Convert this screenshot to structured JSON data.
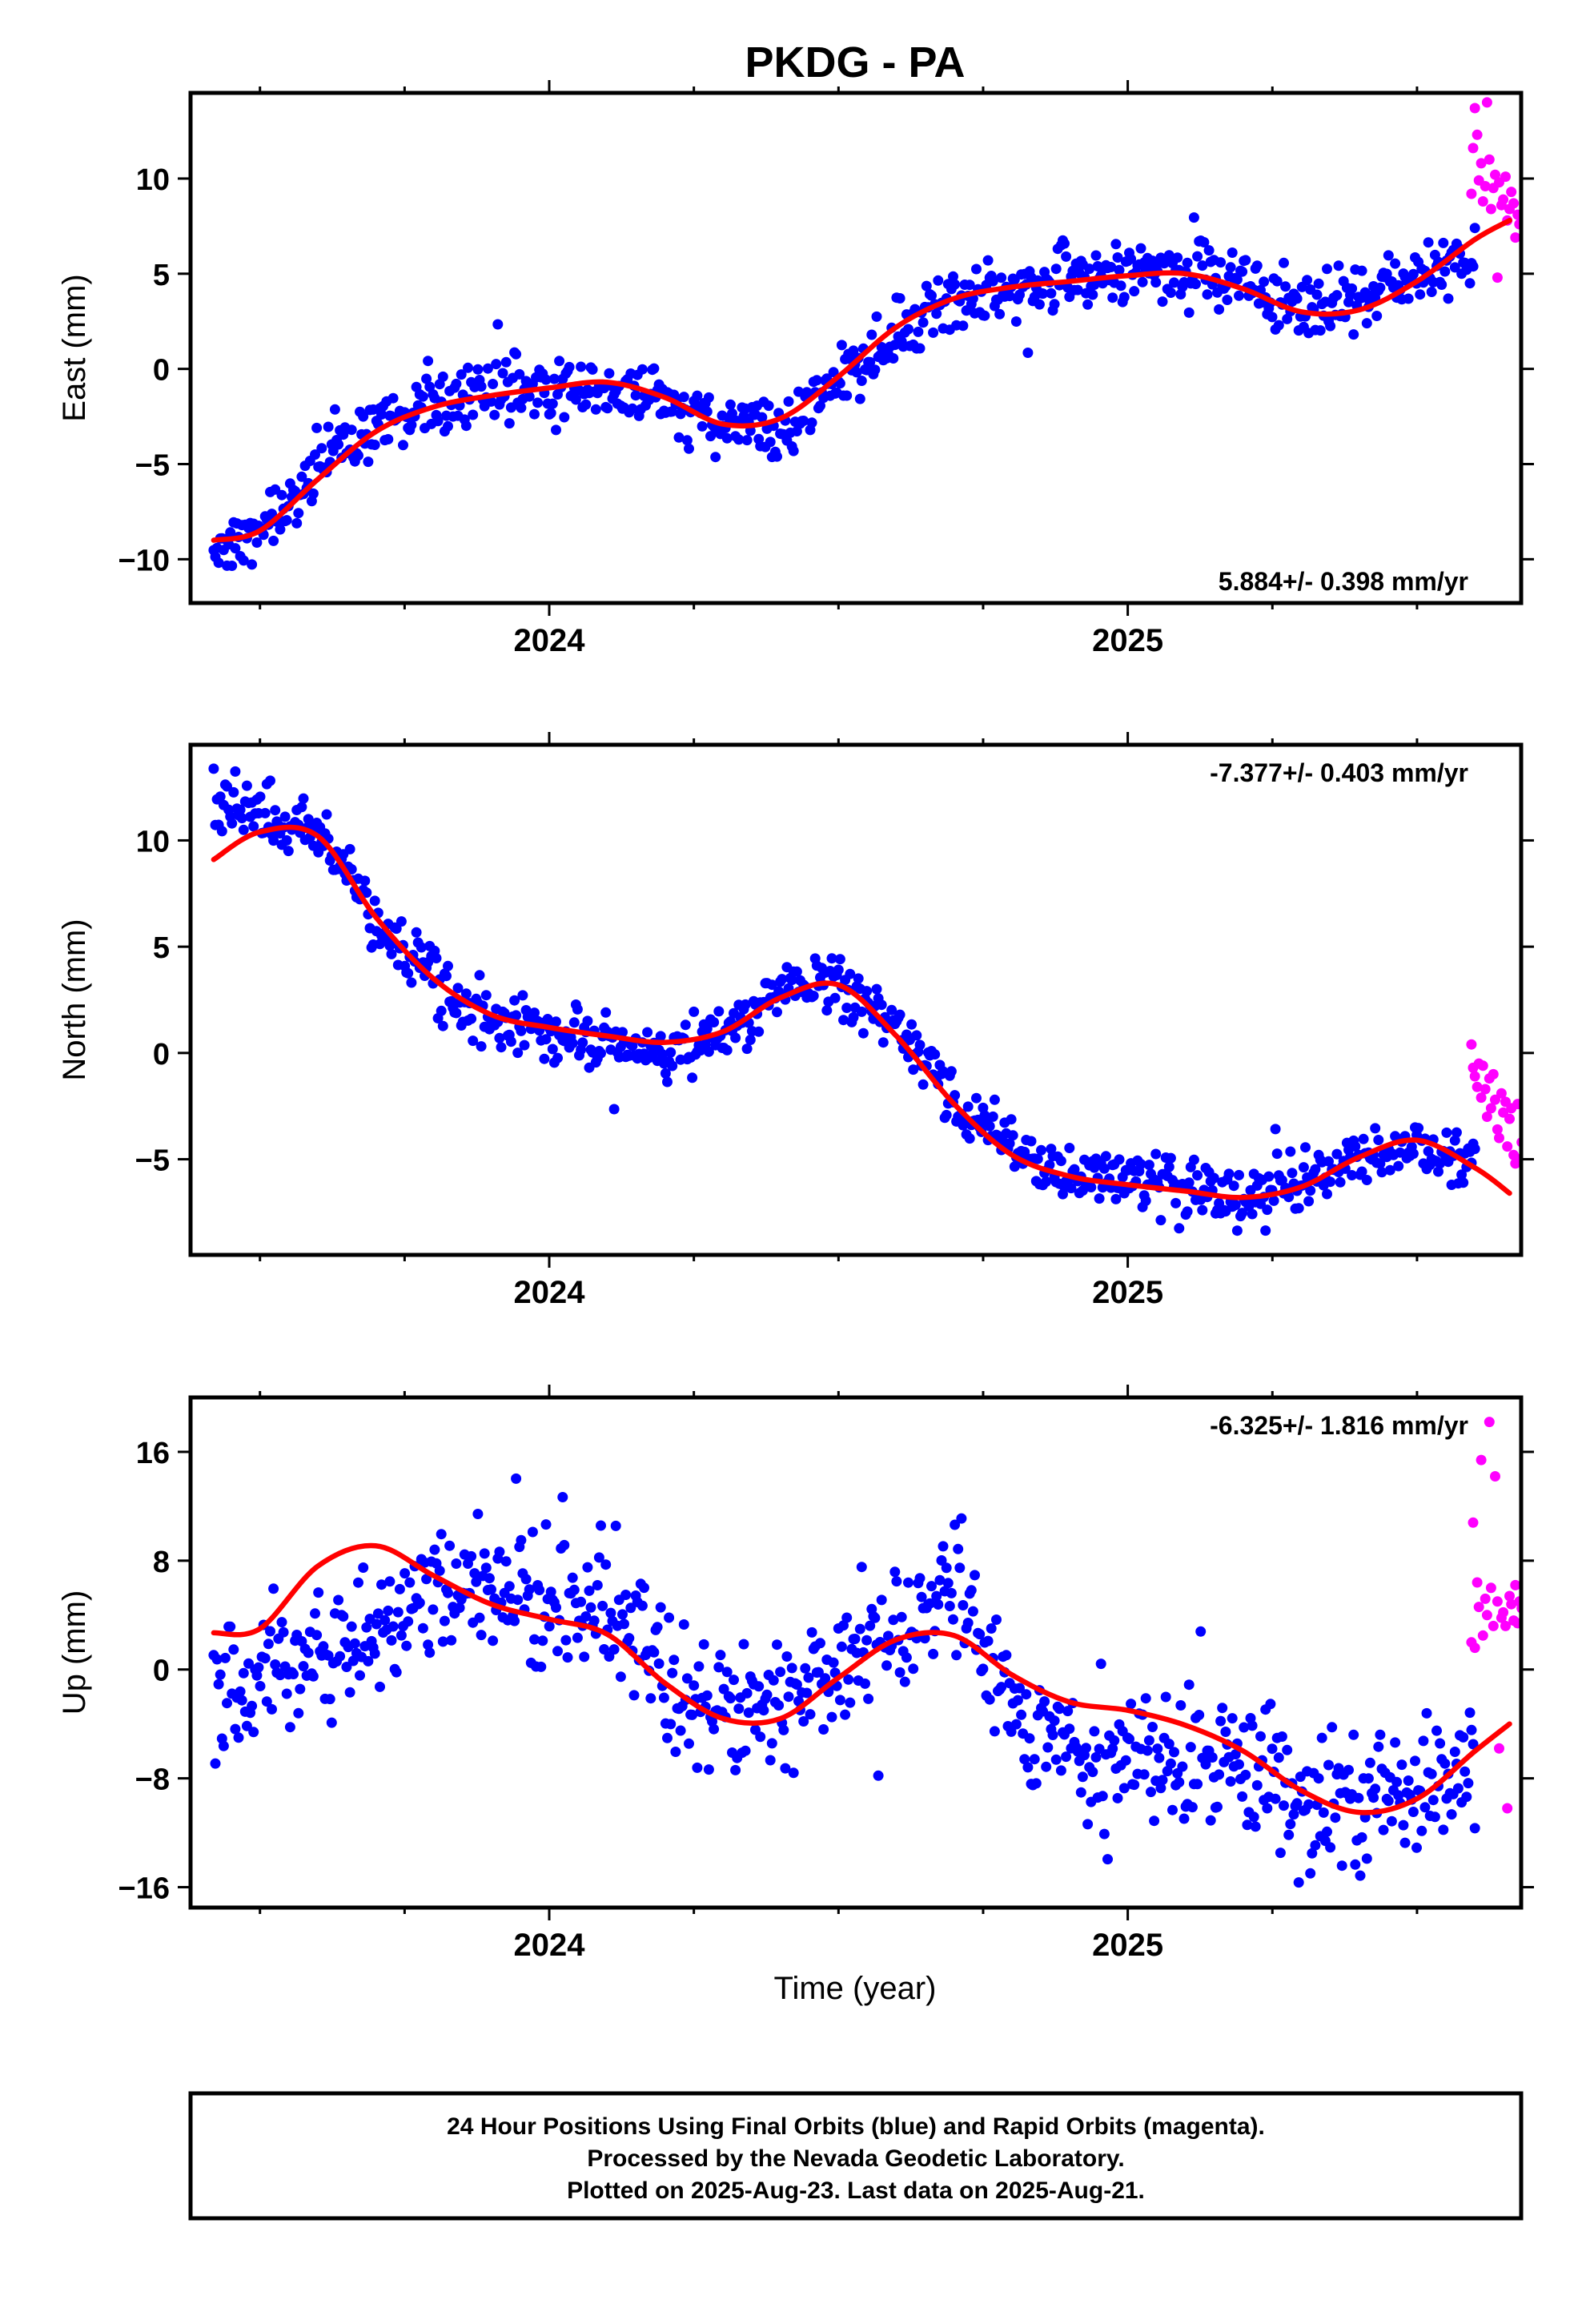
{
  "title": "PKDG - PA",
  "colors": {
    "final_orbits": "#0000ff",
    "rapid_orbits": "#ff00ff",
    "model_fit": "#ff0000",
    "frame": "#000000",
    "background": "#ffffff"
  },
  "xaxis": {
    "label": "Time (year)",
    "range": [
      2023.38,
      2025.68
    ],
    "major_ticks": [
      2024,
      2025
    ],
    "major_tick_labels": [
      "2024",
      "2025"
    ],
    "minor_ticks": [
      2023.5,
      2023.75,
      2024.25,
      2024.5,
      2024.75,
      2025.25,
      2025.5
    ]
  },
  "chart_data": [
    {
      "type": "scatter",
      "component": "east",
      "ylabel": "East (mm)",
      "ylim": [
        -12.3,
        14.5
      ],
      "yticks": [
        -10,
        -5,
        0,
        5,
        10
      ],
      "ytick_labels": [
        "−10",
        "−5",
        "0",
        "5",
        "10"
      ],
      "rate_label": "5.884+/- 0.398 mm/yr",
      "rate_label_position": "bottom-right",
      "fit_curve": {
        "t": [
          2023.42,
          2023.5,
          2023.6,
          2023.7,
          2023.8,
          2023.9,
          2024.0,
          2024.1,
          2024.2,
          2024.3,
          2024.4,
          2024.5,
          2024.6,
          2024.7,
          2024.8,
          2024.9,
          2025.0,
          2025.1,
          2025.2,
          2025.3,
          2025.4,
          2025.5,
          2025.6,
          2025.66
        ],
        "y": [
          -9.0,
          -8.5,
          -5.8,
          -3.3,
          -2.0,
          -1.4,
          -1.0,
          -0.7,
          -1.5,
          -2.9,
          -2.6,
          -0.4,
          2.2,
          3.7,
          4.3,
          4.6,
          4.9,
          5.0,
          4.2,
          3.0,
          3.1,
          4.6,
          6.8,
          7.8
        ]
      },
      "final_orbits_trend": {
        "t": [
          2023.42,
          2023.5,
          2023.6,
          2023.7,
          2023.8,
          2023.9,
          2024.0,
          2024.1,
          2024.2,
          2024.3,
          2024.4,
          2024.5,
          2024.6,
          2024.7,
          2024.8,
          2024.9,
          2025.0,
          2025.1,
          2025.2,
          2025.3,
          2025.4,
          2025.5,
          2025.6
        ],
        "y": [
          -9.6,
          -8.7,
          -5.5,
          -3.0,
          -2.0,
          -0.9,
          -1.0,
          -1.3,
          -1.5,
          -2.8,
          -3.2,
          -0.8,
          1.8,
          3.6,
          4.3,
          4.8,
          5.1,
          4.9,
          4.6,
          3.3,
          3.7,
          4.8,
          6.2
        ],
        "scatter": 1.3,
        "n": 760
      },
      "rapid_orbits": {
        "t": [
          2025.594,
          2025.597,
          2025.6,
          2025.604,
          2025.607,
          2025.611,
          2025.614,
          2025.618,
          2025.621,
          2025.625,
          2025.628,
          2025.632,
          2025.635,
          2025.639,
          2025.642,
          2025.646,
          2025.649,
          2025.653,
          2025.656,
          2025.66,
          2025.663,
          2025.667,
          2025.67,
          2025.674,
          2025.677,
          2025.681
        ],
        "y": [
          9.2,
          11.6,
          13.7,
          12.3,
          9.9,
          10.8,
          8.8,
          9.6,
          14.0,
          11.0,
          8.4,
          9.5,
          10.2,
          4.8,
          9.8,
          8.6,
          8.9,
          10.1,
          7.8,
          8.4,
          9.3,
          8.7,
          6.9,
          8.1,
          7.6,
          8.0
        ]
      }
    },
    {
      "type": "scatter",
      "component": "north",
      "ylabel": "North (mm)",
      "ylim": [
        -9.5,
        14.5
      ],
      "yticks": [
        -5,
        0,
        5,
        10
      ],
      "ytick_labels": [
        "−5",
        "0",
        "5",
        "10"
      ],
      "rate_label": "-7.377+/- 0.403 mm/yr",
      "rate_label_position": "top-right",
      "fit_curve": {
        "t": [
          2023.42,
          2023.5,
          2023.6,
          2023.7,
          2023.8,
          2023.9,
          2024.0,
          2024.1,
          2024.2,
          2024.3,
          2024.4,
          2024.5,
          2024.6,
          2024.7,
          2024.8,
          2024.9,
          2025.0,
          2025.1,
          2025.2,
          2025.3,
          2025.4,
          2025.5,
          2025.6,
          2025.66
        ],
        "y": [
          9.1,
          10.4,
          10.2,
          6.4,
          3.5,
          1.8,
          1.2,
          0.8,
          0.5,
          1.0,
          2.6,
          3.2,
          0.8,
          -2.4,
          -4.8,
          -5.8,
          -6.2,
          -6.5,
          -6.8,
          -6.3,
          -4.9,
          -4.1,
          -5.4,
          -6.6
        ]
      },
      "final_orbits_trend": {
        "t": [
          2023.42,
          2023.5,
          2023.6,
          2023.7,
          2023.8,
          2023.9,
          2024.0,
          2024.1,
          2024.2,
          2024.3,
          2024.4,
          2024.5,
          2024.6,
          2024.7,
          2024.8,
          2024.9,
          2025.0,
          2025.1,
          2025.2,
          2025.3,
          2025.4,
          2025.5,
          2025.6
        ],
        "y": [
          11.7,
          11.3,
          10.4,
          6.0,
          3.6,
          1.5,
          1.0,
          0.9,
          0.1,
          1.0,
          2.8,
          3.2,
          1.4,
          -2.2,
          -4.6,
          -6.0,
          -5.4,
          -6.4,
          -6.8,
          -6.0,
          -5.1,
          -4.6,
          -5.0
        ],
        "scatter": 1.1,
        "n": 760
      },
      "rapid_orbits": {
        "t": [
          2025.594,
          2025.597,
          2025.6,
          2025.604,
          2025.607,
          2025.611,
          2025.614,
          2025.618,
          2025.621,
          2025.625,
          2025.628,
          2025.632,
          2025.635,
          2025.639,
          2025.642,
          2025.646,
          2025.649,
          2025.653,
          2025.656,
          2025.66,
          2025.663,
          2025.667,
          2025.67,
          2025.674,
          2025.677,
          2025.681
        ],
        "y": [
          0.4,
          -0.7,
          -1.1,
          -1.6,
          -0.5,
          -2.1,
          -0.6,
          -1.7,
          -3.0,
          -1.2,
          -2.6,
          -1.0,
          -2.2,
          -3.6,
          -4.0,
          -1.9,
          -2.8,
          -2.3,
          -4.4,
          -3.1,
          -2.6,
          -4.8,
          -5.2,
          -2.4,
          -5.0,
          -4.2
        ]
      }
    },
    {
      "type": "scatter",
      "component": "up",
      "ylabel": "Up (mm)",
      "ylim": [
        -17.5,
        20.0
      ],
      "yticks": [
        -16,
        -8,
        0,
        8,
        16
      ],
      "ytick_labels": [
        "−16",
        "−8",
        "0",
        "8",
        "16"
      ],
      "rate_label": "-6.325+/- 1.816 mm/yr",
      "rate_label_position": "top-right",
      "fit_curve": {
        "t": [
          2023.42,
          2023.5,
          2023.6,
          2023.7,
          2023.8,
          2023.9,
          2024.0,
          2024.1,
          2024.2,
          2024.3,
          2024.4,
          2024.5,
          2024.6,
          2024.7,
          2024.8,
          2024.9,
          2025.0,
          2025.1,
          2025.2,
          2025.3,
          2025.4,
          2025.5,
          2025.6,
          2025.66
        ],
        "y": [
          2.7,
          3.0,
          7.6,
          9.1,
          6.9,
          4.8,
          3.7,
          2.6,
          -1.0,
          -3.6,
          -3.6,
          -0.6,
          2.2,
          2.5,
          -0.4,
          -2.4,
          -3.0,
          -4.1,
          -6.0,
          -8.9,
          -10.5,
          -9.5,
          -6.0,
          -4.0
        ]
      },
      "final_orbits_trend": {
        "t": [
          2023.42,
          2023.5,
          2023.6,
          2023.7,
          2023.8,
          2023.9,
          2024.0,
          2024.1,
          2024.2,
          2024.3,
          2024.4,
          2024.5,
          2024.6,
          2024.7,
          2024.8,
          2024.9,
          2025.0,
          2025.1,
          2025.2,
          2025.3,
          2025.4,
          2025.5,
          2025.6
        ],
        "y": [
          -1.5,
          0.6,
          1.0,
          3.4,
          5.6,
          7.0,
          5.5,
          4.2,
          -0.6,
          -3.5,
          -2.4,
          0.2,
          2.8,
          5.2,
          -2.0,
          -5.6,
          -6.8,
          -6.0,
          -7.2,
          -9.4,
          -9.6,
          -8.6,
          -7.4
        ],
        "scatter": 4.0,
        "n": 760
      },
      "rapid_orbits": {
        "t": [
          2025.594,
          2025.597,
          2025.6,
          2025.604,
          2025.607,
          2025.611,
          2025.614,
          2025.618,
          2025.621,
          2025.625,
          2025.628,
          2025.632,
          2025.635,
          2025.639,
          2025.642,
          2025.646,
          2025.649,
          2025.653,
          2025.656,
          2025.66,
          2025.663,
          2025.667,
          2025.67,
          2025.674,
          2025.677,
          2025.681
        ],
        "y": [
          2.0,
          10.8,
          1.6,
          6.4,
          4.6,
          15.4,
          2.5,
          5.2,
          4.0,
          18.2,
          6.0,
          3.2,
          14.2,
          5.0,
          -5.8,
          3.8,
          4.2,
          3.2,
          -10.2,
          5.4,
          4.8,
          3.6,
          6.2,
          3.4,
          5.0,
          4.5
        ]
      }
    }
  ],
  "footer": {
    "line1": "24 Hour Positions Using Final Orbits (blue) and Rapid Orbits (magenta).",
    "line2": "Processed by the Nevada Geodetic Laboratory.",
    "line3": "Plotted on 2025-Aug-23. Last data on 2025-Aug-21."
  }
}
